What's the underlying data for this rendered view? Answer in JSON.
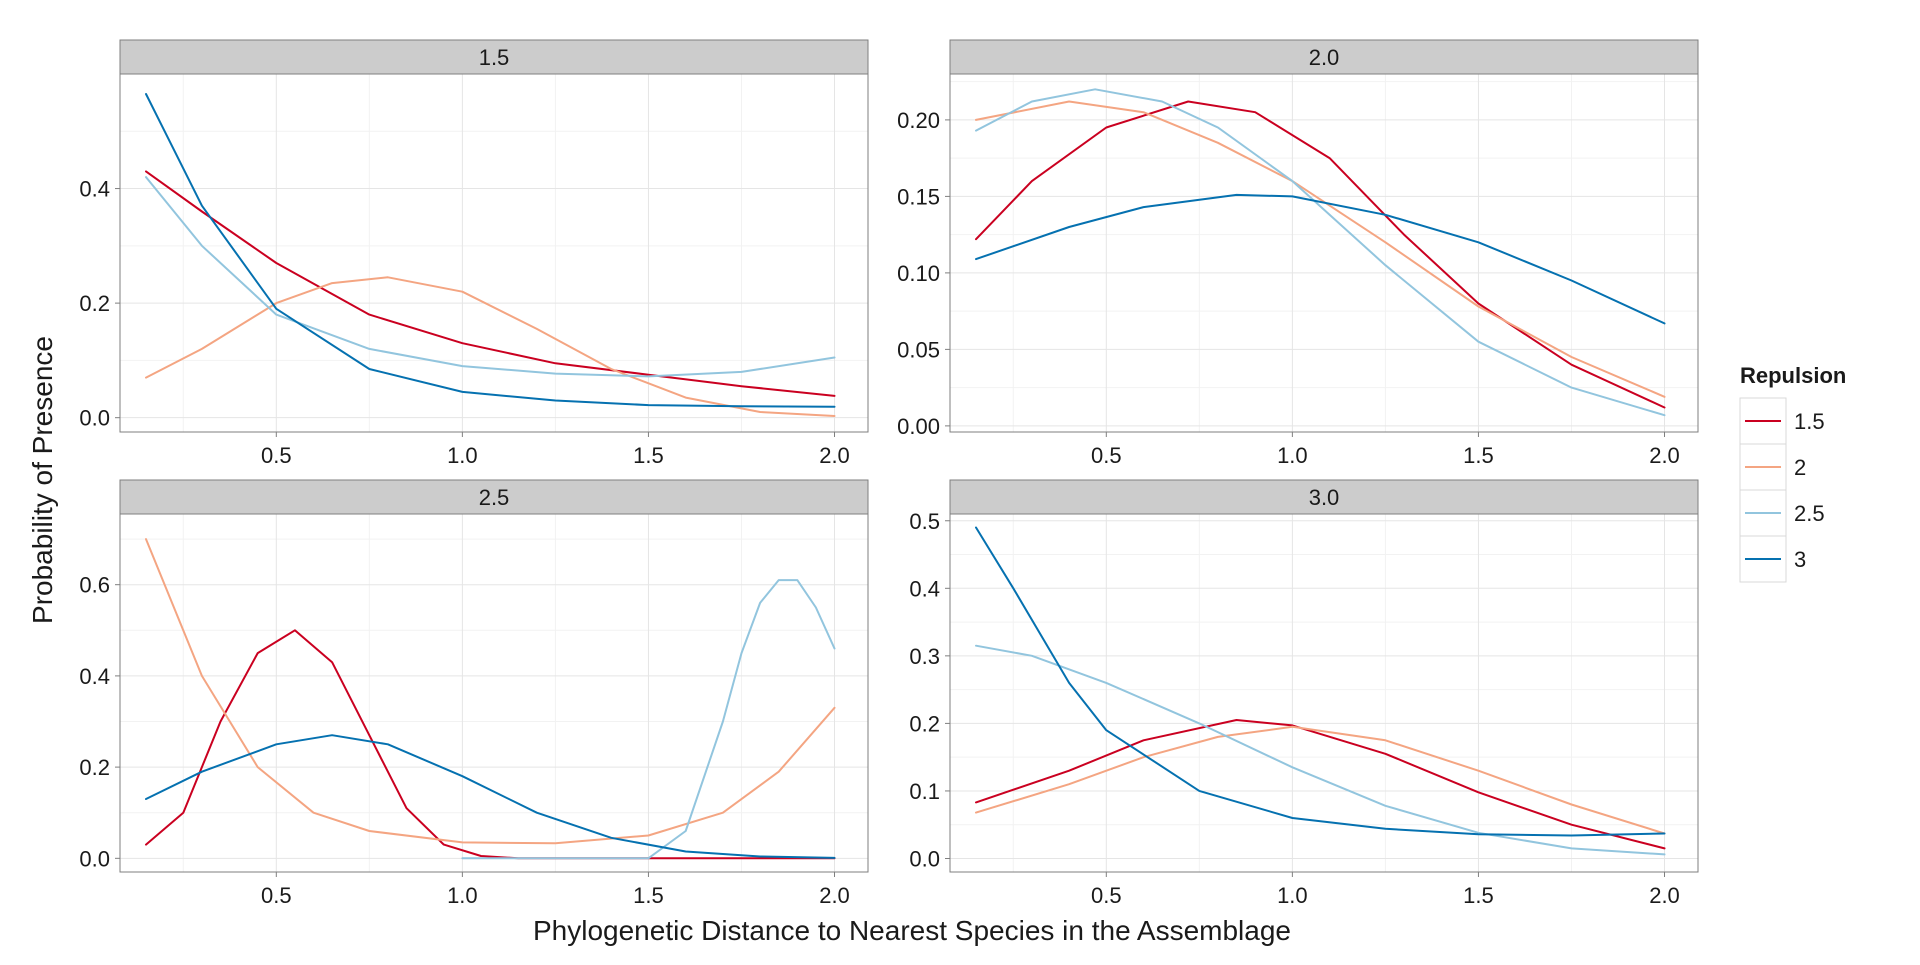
{
  "chart_data": {
    "type": "line",
    "xlabel": "Phylogenetic Distance to Nearest Species in the Assemblage",
    "ylabel": "Probability of Presence",
    "legend": {
      "title": "Repulsion",
      "placement": "right",
      "entries": [
        {
          "label": "1.5",
          "color": "#ca0020"
        },
        {
          "label": "2",
          "color": "#f4a582"
        },
        {
          "label": "2.5",
          "color": "#92c5de"
        },
        {
          "label": "3",
          "color": "#0571b0"
        }
      ]
    },
    "grid": true,
    "x_ticks": [
      0.5,
      1.0,
      1.5,
      2.0
    ],
    "x_tick_labels": [
      "0.5",
      "1.0",
      "1.5",
      "2.0"
    ],
    "xlim": [
      0.08,
      2.09
    ],
    "panels": [
      {
        "strip": "1.5",
        "ylim": [
          -0.025,
          0.6
        ],
        "y_ticks": [
          0,
          0.2,
          0.4
        ],
        "y_tick_labels": [
          "0.0",
          "0.2",
          "0.4"
        ],
        "series": [
          {
            "name": "1.5",
            "x": [
              0.15,
              0.3,
              0.5,
              0.75,
              1.0,
              1.25,
              1.5,
              1.75,
              2.0
            ],
            "y": [
              0.43,
              0.36,
              0.27,
              0.18,
              0.13,
              0.095,
              0.075,
              0.055,
              0.038
            ]
          },
          {
            "name": "2",
            "x": [
              0.15,
              0.3,
              0.5,
              0.65,
              0.8,
              1.0,
              1.2,
              1.4,
              1.6,
              1.8,
              2.0
            ],
            "y": [
              0.07,
              0.12,
              0.2,
              0.235,
              0.245,
              0.22,
              0.155,
              0.085,
              0.035,
              0.01,
              0.003
            ]
          },
          {
            "name": "2.5",
            "x": [
              0.15,
              0.3,
              0.5,
              0.75,
              1.0,
              1.25,
              1.5,
              1.75,
              2.0
            ],
            "y": [
              0.42,
              0.3,
              0.18,
              0.12,
              0.09,
              0.077,
              0.072,
              0.08,
              0.105
            ]
          },
          {
            "name": "3",
            "x": [
              0.15,
              0.3,
              0.5,
              0.75,
              1.0,
              1.25,
              1.5,
              1.75,
              2.0
            ],
            "y": [
              0.565,
              0.37,
              0.19,
              0.085,
              0.045,
              0.03,
              0.022,
              0.02,
              0.019
            ]
          }
        ]
      },
      {
        "strip": "2.0",
        "ylim": [
          -0.004,
          0.23
        ],
        "y_ticks": [
          0,
          0.05,
          0.1,
          0.15,
          0.2
        ],
        "y_tick_labels": [
          "0.00",
          "0.05",
          "0.10",
          "0.15",
          "0.20"
        ],
        "series": [
          {
            "name": "1.5",
            "x": [
              0.15,
              0.3,
              0.5,
              0.72,
              0.9,
              1.1,
              1.3,
              1.5,
              1.75,
              2.0
            ],
            "y": [
              0.122,
              0.16,
              0.195,
              0.212,
              0.205,
              0.175,
              0.125,
              0.08,
              0.04,
              0.012
            ]
          },
          {
            "name": "2",
            "x": [
              0.15,
              0.4,
              0.6,
              0.8,
              1.0,
              1.25,
              1.5,
              1.75,
              2.0
            ],
            "y": [
              0.2,
              0.212,
              0.205,
              0.185,
              0.16,
              0.12,
              0.078,
              0.045,
              0.019
            ]
          },
          {
            "name": "2.5",
            "x": [
              0.15,
              0.3,
              0.47,
              0.65,
              0.8,
              1.0,
              1.25,
              1.5,
              1.75,
              2.0
            ],
            "y": [
              0.193,
              0.212,
              0.22,
              0.212,
              0.195,
              0.16,
              0.105,
              0.055,
              0.025,
              0.007
            ]
          },
          {
            "name": "3",
            "x": [
              0.15,
              0.4,
              0.6,
              0.85,
              1.0,
              1.25,
              1.5,
              1.75,
              2.0
            ],
            "y": [
              0.109,
              0.13,
              0.143,
              0.151,
              0.15,
              0.138,
              0.12,
              0.095,
              0.067
            ]
          }
        ]
      },
      {
        "strip": "2.5",
        "ylim": [
          -0.03,
          0.755
        ],
        "y_ticks": [
          0,
          0.2,
          0.4,
          0.6
        ],
        "y_tick_labels": [
          "0.0",
          "0.2",
          "0.4",
          "0.6"
        ],
        "series": [
          {
            "name": "1.5",
            "x": [
              0.15,
              0.25,
              0.35,
              0.45,
              0.55,
              0.65,
              0.75,
              0.85,
              0.95,
              1.05,
              1.15,
              1.5,
              2.0
            ],
            "y": [
              0.03,
              0.1,
              0.3,
              0.45,
              0.5,
              0.43,
              0.27,
              0.11,
              0.03,
              0.005,
              0.0,
              0.0,
              0.0
            ]
          },
          {
            "name": "2",
            "x": [
              0.15,
              0.3,
              0.45,
              0.6,
              0.75,
              1.0,
              1.25,
              1.5,
              1.7,
              1.85,
              2.0
            ],
            "y": [
              0.7,
              0.4,
              0.2,
              0.1,
              0.06,
              0.035,
              0.033,
              0.05,
              0.1,
              0.19,
              0.33
            ]
          },
          {
            "name": "2.5",
            "x": [
              1.0,
              1.5,
              1.6,
              1.7,
              1.75,
              1.8,
              1.85,
              1.9,
              1.95,
              2.0
            ],
            "y": [
              0.0,
              0.0,
              0.06,
              0.3,
              0.45,
              0.56,
              0.61,
              0.61,
              0.55,
              0.46
            ]
          },
          {
            "name": "3",
            "x": [
              0.15,
              0.3,
              0.5,
              0.65,
              0.8,
              1.0,
              1.2,
              1.4,
              1.6,
              1.8,
              2.0
            ],
            "y": [
              0.13,
              0.19,
              0.25,
              0.27,
              0.25,
              0.18,
              0.1,
              0.045,
              0.015,
              0.004,
              0.001
            ]
          }
        ]
      },
      {
        "strip": "3.0",
        "ylim": [
          -0.02,
          0.51
        ],
        "y_ticks": [
          0,
          0.1,
          0.2,
          0.3,
          0.4,
          0.5
        ],
        "y_tick_labels": [
          "0.0",
          "0.1",
          "0.2",
          "0.3",
          "0.4",
          "0.5"
        ],
        "series": [
          {
            "name": "1.5",
            "x": [
              0.15,
              0.4,
              0.6,
              0.85,
              1.0,
              1.25,
              1.5,
              1.75,
              2.0
            ],
            "y": [
              0.083,
              0.13,
              0.175,
              0.205,
              0.197,
              0.155,
              0.098,
              0.05,
              0.015
            ]
          },
          {
            "name": "2",
            "x": [
              0.15,
              0.4,
              0.6,
              0.8,
              1.0,
              1.25,
              1.5,
              1.75,
              2.0
            ],
            "y": [
              0.068,
              0.11,
              0.15,
              0.18,
              0.195,
              0.175,
              0.13,
              0.08,
              0.037
            ]
          },
          {
            "name": "2.5",
            "x": [
              0.15,
              0.3,
              0.5,
              0.75,
              1.0,
              1.25,
              1.5,
              1.75,
              2.0
            ],
            "y": [
              0.315,
              0.3,
              0.26,
              0.2,
              0.135,
              0.078,
              0.038,
              0.015,
              0.006
            ]
          },
          {
            "name": "3",
            "x": [
              0.15,
              0.25,
              0.4,
              0.5,
              0.75,
              1.0,
              1.25,
              1.5,
              1.75,
              2.0
            ],
            "y": [
              0.49,
              0.4,
              0.26,
              0.19,
              0.1,
              0.06,
              0.044,
              0.036,
              0.034,
              0.037
            ]
          }
        ]
      }
    ]
  }
}
